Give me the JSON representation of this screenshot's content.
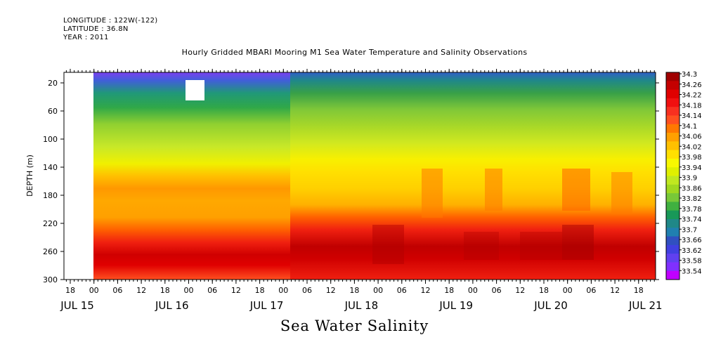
{
  "header": {
    "longitude": "LONGITUDE : 122W(-122)",
    "latitude": "LATITUDE : 36.8N",
    "year": "YEAR : 2011"
  },
  "chart_data": {
    "type": "heatmap",
    "title": "Hourly Gridded MBARI Mooring M1 Sea Water Temperature and Salinity Observations",
    "xlabel": "Sea Water Salinity",
    "ylabel": "DEPTH (m)",
    "x_tick_labels": [
      "18",
      "00",
      "06",
      "12",
      "18",
      "00",
      "06",
      "12",
      "18",
      "00",
      "06",
      "12",
      "18",
      "00",
      "06",
      "12",
      "18",
      "00",
      "06",
      "12",
      "18",
      "00",
      "06",
      "12",
      "18"
    ],
    "date_labels": [
      "JUL 15",
      "JUL 16",
      "JUL 17",
      "JUL 18",
      "JUL 19",
      "JUL 20",
      "JUL 21"
    ],
    "y_tick_labels": [
      "20",
      "60",
      "100",
      "140",
      "180",
      "220",
      "260",
      "300"
    ],
    "ylim": [
      300,
      5
    ],
    "colorbar": {
      "labels": [
        "34.3",
        "34.26",
        "34.22",
        "34.18",
        "34.14",
        "34.1",
        "34.06",
        "34.02",
        "33.98",
        "33.94",
        "33.9",
        "33.86",
        "33.82",
        "33.78",
        "33.74",
        "33.7",
        "33.66",
        "33.62",
        "33.58",
        "33.54"
      ],
      "colors": [
        "#a00000",
        "#c40000",
        "#e00000",
        "#f01010",
        "#f83020",
        "#ff5020",
        "#ff7800",
        "#ffa000",
        "#ffc000",
        "#ffe000",
        "#f8f800",
        "#e0f000",
        "#c0e820",
        "#a0d820",
        "#78c838",
        "#40b040",
        "#189858",
        "#208888",
        "#2080b0",
        "#3050c0",
        "#4040e0",
        "#6040f0",
        "#8030ff",
        "#c000ff"
      ]
    },
    "depth_profile_by_period": [
      {
        "period": "JUL 15 18 - JUL 16 00",
        "values": "no data"
      },
      {
        "period": "JUL 16 00 - JUL 18 00",
        "values": [
          33.64,
          33.74,
          33.86,
          33.92,
          34.1,
          34.12,
          34.22,
          34.3
        ]
      },
      {
        "period": "JUL 18 00 - JUL 21 23",
        "values": [
          33.66,
          33.74,
          33.84,
          33.96,
          34.06,
          34.18,
          34.28,
          34.22
        ]
      }
    ]
  }
}
